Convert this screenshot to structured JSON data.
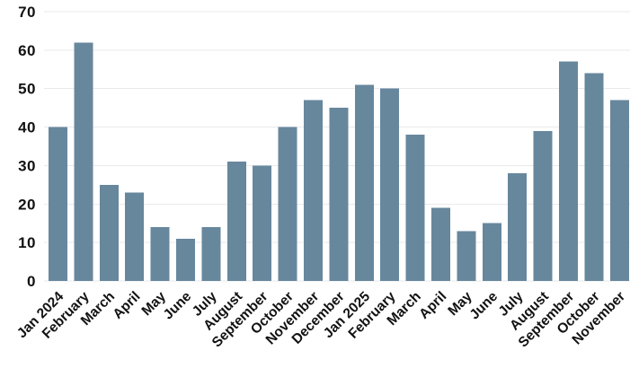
{
  "chart_data": {
    "type": "bar",
    "title": "",
    "xlabel": "",
    "ylabel": "",
    "categories": [
      "Jan 2024",
      "February",
      "March",
      "April",
      "May",
      "June",
      "July",
      "August",
      "September",
      "October",
      "November",
      "December",
      "Jan 2025",
      "February",
      "March",
      "April",
      "May",
      "June",
      "July",
      "August",
      "September",
      "October",
      "November"
    ],
    "values": [
      40,
      62,
      25,
      23,
      14,
      11,
      14,
      31,
      30,
      40,
      47,
      45,
      51,
      50,
      38,
      19,
      13,
      15,
      28,
      39,
      57,
      54,
      47
    ],
    "ylim": [
      0,
      70
    ],
    "yticks": [
      0,
      10,
      20,
      30,
      40,
      50,
      60,
      70
    ],
    "grid": "horizontal",
    "legend": "none",
    "x_tick_rotation_deg": 45,
    "colors": {
      "bar": "#67879D",
      "grid_line": "#E9E9EB",
      "tick_label": "#121212",
      "background": "#FFFFFF"
    }
  }
}
